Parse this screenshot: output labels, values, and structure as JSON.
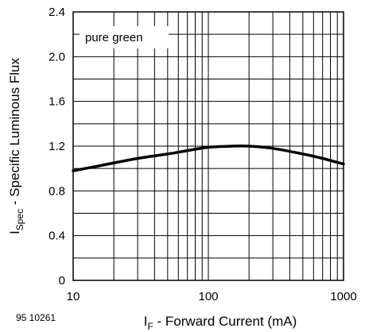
{
  "chart_data": {
    "type": "line",
    "title": "",
    "xlabel_main": "I",
    "xlabel_sub": "F",
    "xlabel_rest": " - Forward Current (mA)",
    "ylabel_main": "I",
    "ylabel_sub": "Spec",
    "ylabel_rest": " - Specific Luminous Flux",
    "x_scale": "log",
    "xlim": [
      10,
      1000
    ],
    "ylim": [
      0,
      2.4
    ],
    "x_ticks": [
      "10",
      "100",
      "1000"
    ],
    "y_ticks": [
      "0",
      "0.4",
      "0.8",
      "1.2",
      "1.6",
      "2.0",
      "2.4"
    ],
    "grid": true,
    "legend_placement": "top-left",
    "series": [
      {
        "name": "pure green",
        "x": [
          10,
          15,
          20,
          30,
          50,
          70,
          100,
          150,
          200,
          300,
          500,
          700,
          1000
        ],
        "y": [
          0.98,
          1.02,
          1.05,
          1.09,
          1.13,
          1.16,
          1.19,
          1.2,
          1.2,
          1.18,
          1.13,
          1.09,
          1.04
        ]
      }
    ],
    "annotation": "95 10261"
  }
}
